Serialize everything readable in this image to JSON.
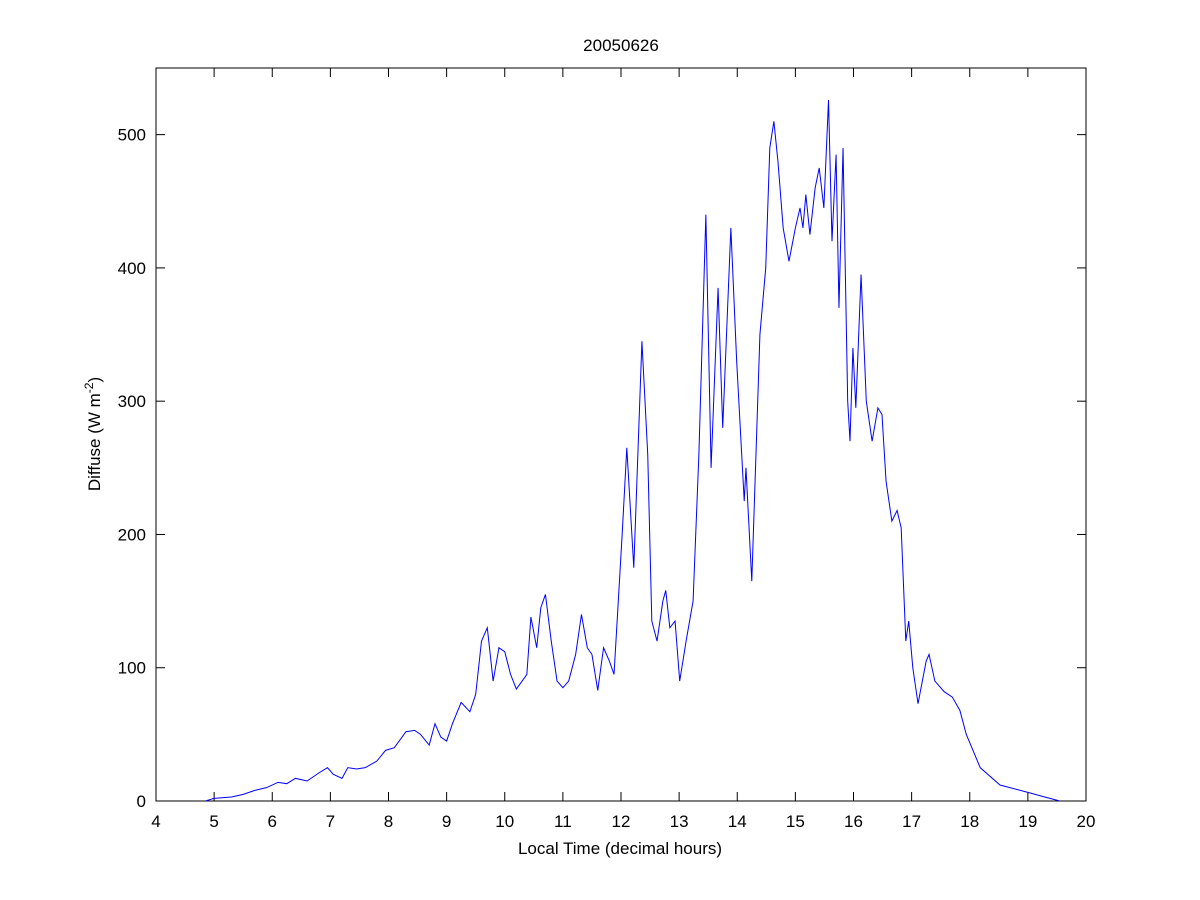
{
  "chart_data": {
    "type": "line",
    "title": "20050626",
    "xlabel": "Local Time (decimal hours)",
    "ylabel": [
      "Diffuse (W m",
      "-2",
      ")"
    ],
    "xlim": [
      4,
      20
    ],
    "xticks": [
      4,
      5,
      6,
      7,
      8,
      9,
      10,
      11,
      12,
      13,
      14,
      15,
      16,
      17,
      18,
      19,
      20
    ],
    "ylim": [
      0,
      550
    ],
    "yticks": [
      0,
      100,
      200,
      300,
      400,
      500
    ],
    "series": [
      {
        "color": "#0000ff",
        "x": [
          4.85,
          5.0,
          5.3,
          5.5,
          5.7,
          5.9,
          6.1,
          6.25,
          6.4,
          6.6,
          6.8,
          6.95,
          7.05,
          7.2,
          7.3,
          7.45,
          7.6,
          7.8,
          7.95,
          8.1,
          8.3,
          8.45,
          8.55,
          8.7,
          8.8,
          8.9,
          9.0,
          9.1,
          9.25,
          9.4,
          9.5,
          9.6,
          9.7,
          9.8,
          9.9,
          10.0,
          10.1,
          10.2,
          10.38,
          10.45,
          10.55,
          10.62,
          10.7,
          10.8,
          10.9,
          11.0,
          11.1,
          11.22,
          11.32,
          11.42,
          11.5,
          11.6,
          11.7,
          11.8,
          11.88,
          12.02,
          12.1,
          12.22,
          12.36,
          12.46,
          12.53,
          12.62,
          12.72,
          12.77,
          12.84,
          12.93,
          13.01,
          13.12,
          13.24,
          13.34,
          13.46,
          13.55,
          13.67,
          13.75,
          13.89,
          13.99,
          14.12,
          14.15,
          14.25,
          14.39,
          14.49,
          14.56,
          14.63,
          14.7,
          14.79,
          14.89,
          15.0,
          15.08,
          15.13,
          15.18,
          15.25,
          15.34,
          15.41,
          15.49,
          15.57,
          15.63,
          15.7,
          15.75,
          15.82,
          15.9,
          15.94,
          15.99,
          16.04,
          16.13,
          16.22,
          16.32,
          16.42,
          16.49,
          16.56,
          16.66,
          16.75,
          16.82,
          16.9,
          16.95,
          17.02,
          17.11,
          17.25,
          17.3,
          17.4,
          17.56,
          17.7,
          17.83,
          17.94,
          18.18,
          18.52,
          19.04,
          19.29,
          19.55
        ],
        "values": [
          0,
          2,
          3,
          5,
          8,
          10,
          14,
          13,
          17,
          15,
          21,
          25,
          20,
          17,
          25,
          24,
          25,
          30,
          38,
          40,
          52,
          53,
          50,
          42,
          58,
          48,
          45,
          58,
          74,
          67,
          80,
          120,
          130,
          90,
          115,
          112,
          95,
          84,
          95,
          138,
          115,
          145,
          155,
          120,
          90,
          85,
          90,
          110,
          140,
          115,
          110,
          83,
          115,
          105,
          95,
          200,
          265,
          175,
          345,
          260,
          135,
          120,
          150,
          158,
          130,
          135,
          90,
          120,
          150,
          260,
          440,
          250,
          385,
          280,
          430,
          330,
          225,
          250,
          165,
          350,
          400,
          490,
          510,
          480,
          430,
          405,
          430,
          445,
          430,
          455,
          425,
          460,
          475,
          445,
          526,
          420,
          485,
          370,
          490,
          300,
          270,
          340,
          295,
          395,
          300,
          270,
          295,
          290,
          240,
          210,
          218,
          205,
          120,
          135,
          100,
          73,
          105,
          110,
          90,
          82,
          78,
          68,
          50,
          25,
          12,
          6,
          3,
          0
        ]
      }
    ]
  }
}
